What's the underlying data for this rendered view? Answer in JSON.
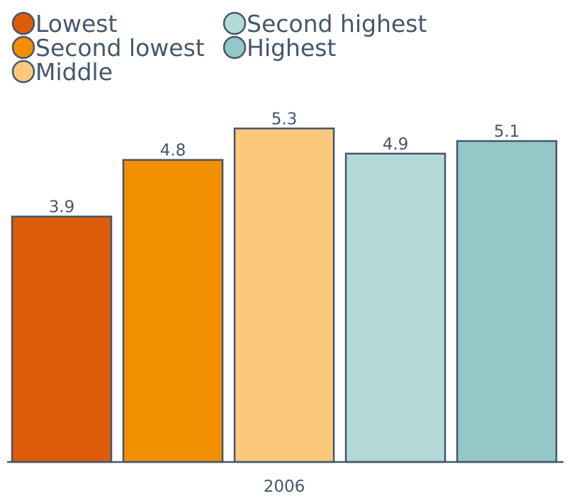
{
  "chart_data": {
    "type": "bar",
    "categories": [
      "2006"
    ],
    "series": [
      {
        "name": "Lowest",
        "values": [
          3.9
        ],
        "color": "#dd5c0a"
      },
      {
        "name": "Second lowest",
        "values": [
          4.8
        ],
        "color": "#f28f00"
      },
      {
        "name": "Middle",
        "values": [
          5.3
        ],
        "color": "#fbc87c"
      },
      {
        "name": "Second highest",
        "values": [
          4.9
        ],
        "color": "#b3dad9"
      },
      {
        "name": "Highest",
        "values": [
          5.1
        ],
        "color": "#94c8c8"
      }
    ],
    "title": "",
    "xlabel": "",
    "ylabel": "",
    "ylim": [
      0,
      5.99
    ],
    "grid": false,
    "legend_position": "top-left",
    "text_color": "#44576a",
    "outline_color": "#44576a"
  }
}
